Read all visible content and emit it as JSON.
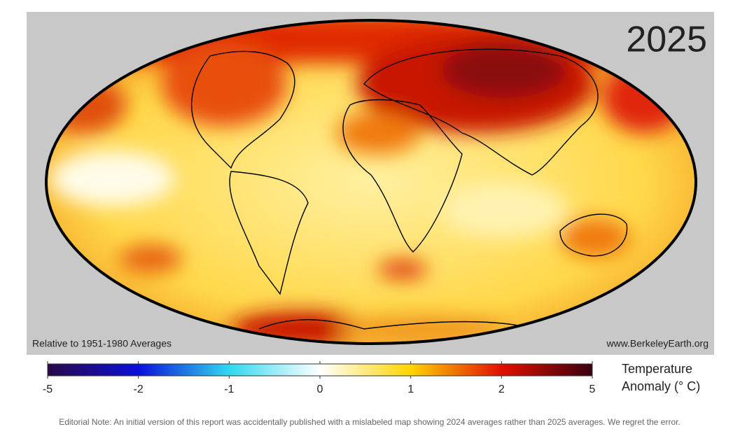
{
  "map": {
    "year": "2025",
    "caption_left": "Relative to 1951-1980 Averages",
    "caption_right": "www.BerkeleyEarth.org"
  },
  "legend": {
    "title_lines": [
      "Temperature",
      "Anomaly  (° C)"
    ],
    "ticks": [
      -5,
      -2,
      -1,
      0,
      1,
      2,
      5
    ],
    "colors": [
      "#2a0848",
      "#0a10d8",
      "#30d8f0",
      "#ffffff",
      "#ffd400",
      "#e01000",
      "#3a0010"
    ]
  },
  "note": "Editorial Note: An initial version of this report was accidentally published with a mislabeled map showing 2024 averages rather than 2025 averages. We regret the error."
}
